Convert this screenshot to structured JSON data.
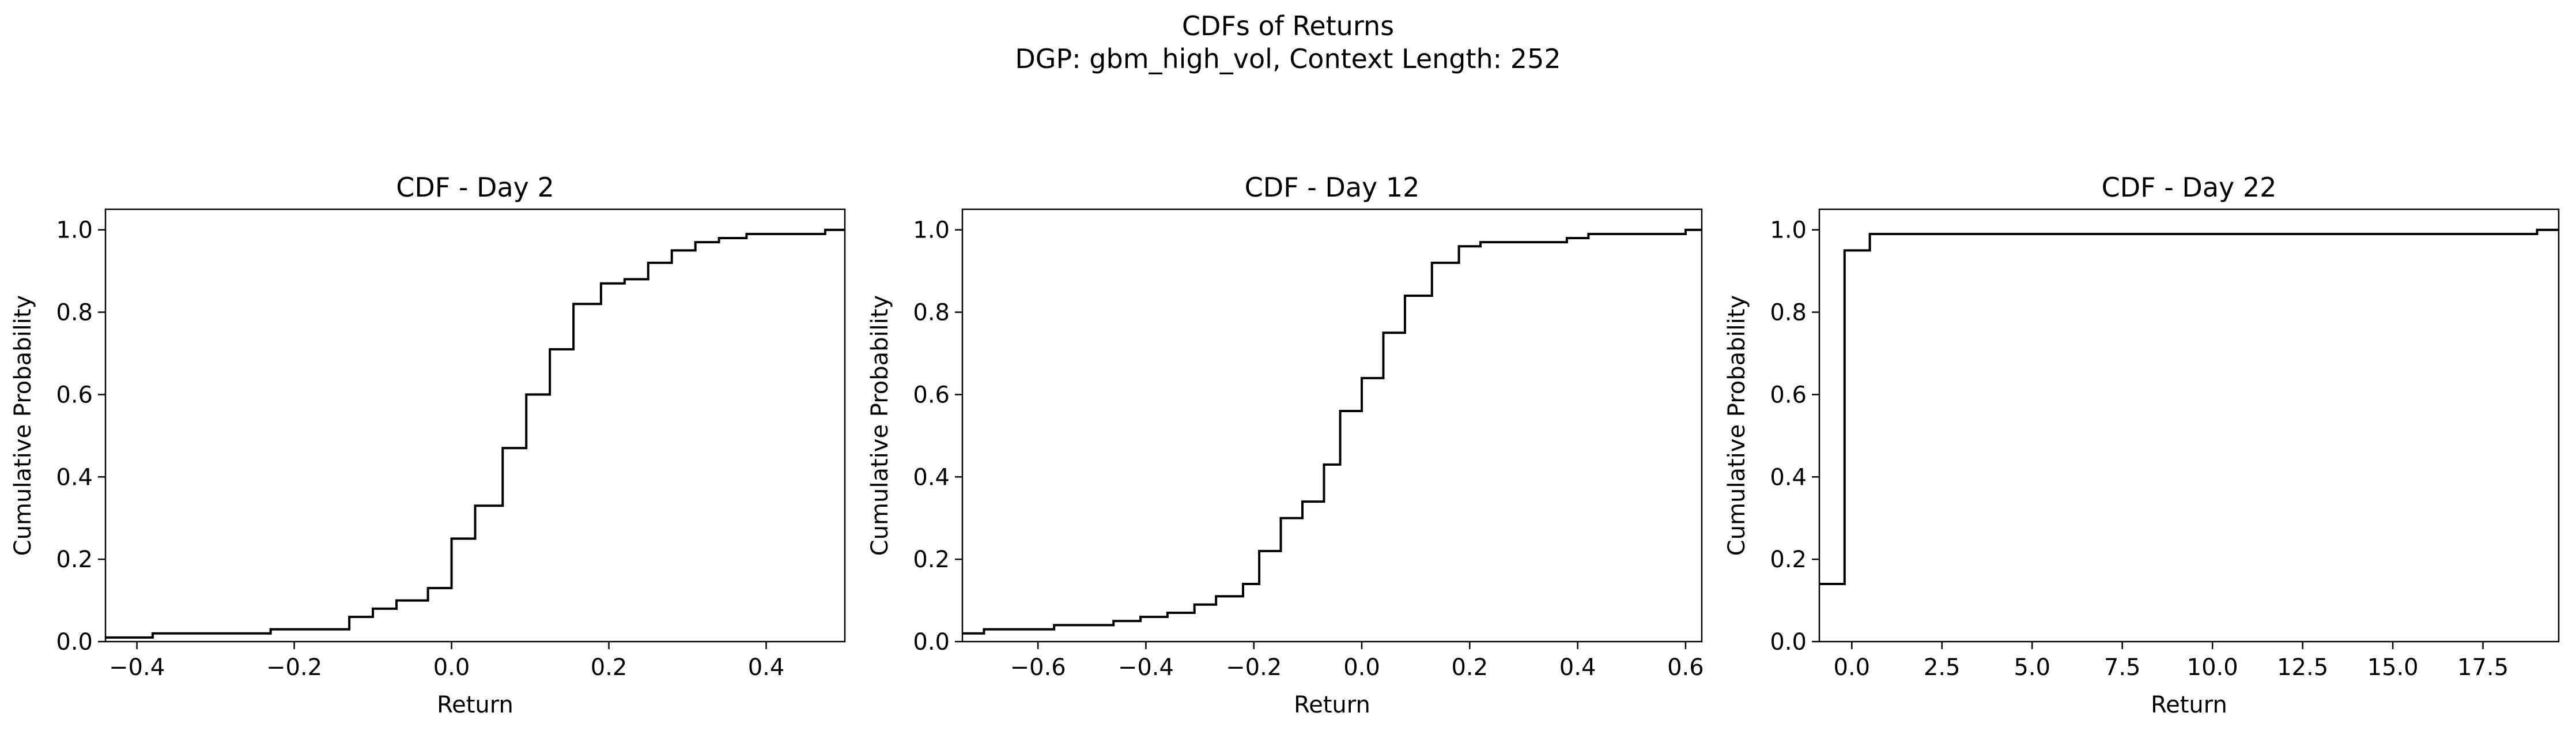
{
  "figure": {
    "title_line1": "CDFs of Returns",
    "title_line2": "DGP: gbm_high_vol, Context Length: 252"
  },
  "chart_data": [
    {
      "type": "line",
      "drawstyle": "step-post",
      "title": "CDF - Day 2",
      "xlabel": "Return",
      "ylabel": "Cumulative Probability",
      "xlim": [
        -0.44,
        0.5
      ],
      "ylim": [
        0.0,
        1.05
      ],
      "xticks": [
        -0.4,
        -0.2,
        0.0,
        0.2,
        0.4
      ],
      "xtick_labels": [
        "−0.4",
        "−0.2",
        "0.0",
        "0.2",
        "0.4"
      ],
      "yticks": [
        0.0,
        0.2,
        0.4,
        0.6,
        0.8,
        1.0
      ],
      "ytick_labels": [
        "0.0",
        "0.2",
        "0.4",
        "0.6",
        "0.8",
        "1.0"
      ],
      "grid": false,
      "color": "#000000",
      "x": [
        -0.44,
        -0.38,
        -0.23,
        -0.13,
        -0.1,
        -0.07,
        -0.03,
        0.0,
        0.03,
        0.065,
        0.095,
        0.125,
        0.155,
        0.19,
        0.22,
        0.25,
        0.28,
        0.31,
        0.34,
        0.375,
        0.475,
        0.5
      ],
      "y": [
        0.01,
        0.02,
        0.03,
        0.06,
        0.08,
        0.1,
        0.13,
        0.25,
        0.33,
        0.47,
        0.6,
        0.71,
        0.82,
        0.87,
        0.88,
        0.92,
        0.95,
        0.97,
        0.98,
        0.99,
        1.0,
        1.0
      ]
    },
    {
      "type": "line",
      "drawstyle": "step-post",
      "title": "CDF - Day 12",
      "xlabel": "Return",
      "ylabel": "Cumulative Probability",
      "xlim": [
        -0.74,
        0.63
      ],
      "ylim": [
        0.0,
        1.05
      ],
      "xticks": [
        -0.6,
        -0.4,
        -0.2,
        0.0,
        0.2,
        0.4,
        0.6
      ],
      "xtick_labels": [
        "−0.6",
        "−0.4",
        "−0.2",
        "0.0",
        "0.2",
        "0.4",
        "0.6"
      ],
      "yticks": [
        0.0,
        0.2,
        0.4,
        0.6,
        0.8,
        1.0
      ],
      "ytick_labels": [
        "0.0",
        "0.2",
        "0.4",
        "0.6",
        "0.8",
        "1.0"
      ],
      "grid": false,
      "color": "#000000",
      "x": [
        -0.74,
        -0.7,
        -0.57,
        -0.46,
        -0.41,
        -0.36,
        -0.31,
        -0.27,
        -0.22,
        -0.19,
        -0.15,
        -0.11,
        -0.07,
        -0.04,
        0.0,
        0.04,
        0.08,
        0.13,
        0.18,
        0.22,
        0.27,
        0.38,
        0.42,
        0.6,
        0.63
      ],
      "y": [
        0.02,
        0.03,
        0.04,
        0.05,
        0.06,
        0.07,
        0.09,
        0.11,
        0.14,
        0.22,
        0.3,
        0.34,
        0.43,
        0.56,
        0.64,
        0.75,
        0.84,
        0.92,
        0.96,
        0.97,
        0.97,
        0.98,
        0.99,
        1.0,
        1.0
      ]
    },
    {
      "type": "line",
      "drawstyle": "step-post",
      "title": "CDF - Day 22",
      "xlabel": "Return",
      "ylabel": "Cumulative Probability",
      "xlim": [
        -0.9,
        19.6
      ],
      "ylim": [
        0.0,
        1.05
      ],
      "xticks": [
        0.0,
        2.5,
        5.0,
        7.5,
        10.0,
        12.5,
        15.0,
        17.5
      ],
      "xtick_labels": [
        "0.0",
        "2.5",
        "5.0",
        "7.5",
        "10.0",
        "12.5",
        "15.0",
        "17.5"
      ],
      "yticks": [
        0.0,
        0.2,
        0.4,
        0.6,
        0.8,
        1.0
      ],
      "ytick_labels": [
        "0.0",
        "0.2",
        "0.4",
        "0.6",
        "0.8",
        "1.0"
      ],
      "grid": false,
      "color": "#000000",
      "x": [
        -0.9,
        -0.2,
        0.5,
        19.0,
        19.6
      ],
      "y": [
        0.14,
        0.95,
        0.99,
        1.0,
        1.0
      ]
    }
  ]
}
